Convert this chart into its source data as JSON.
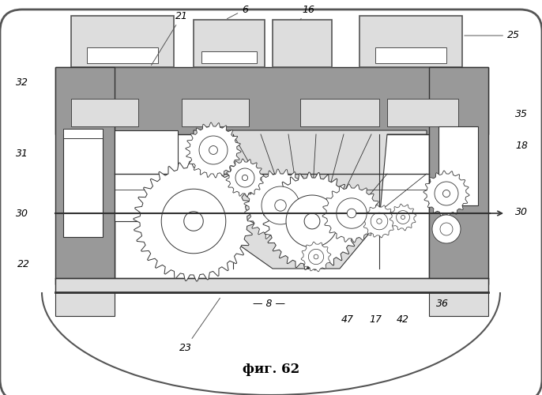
{
  "title": "фиг. 62",
  "bg": "#ffffff",
  "lc": "#333333",
  "gray_dark": "#999999",
  "gray_med": "#bbbbbb",
  "gray_light": "#dddddd",
  "white": "#ffffff"
}
